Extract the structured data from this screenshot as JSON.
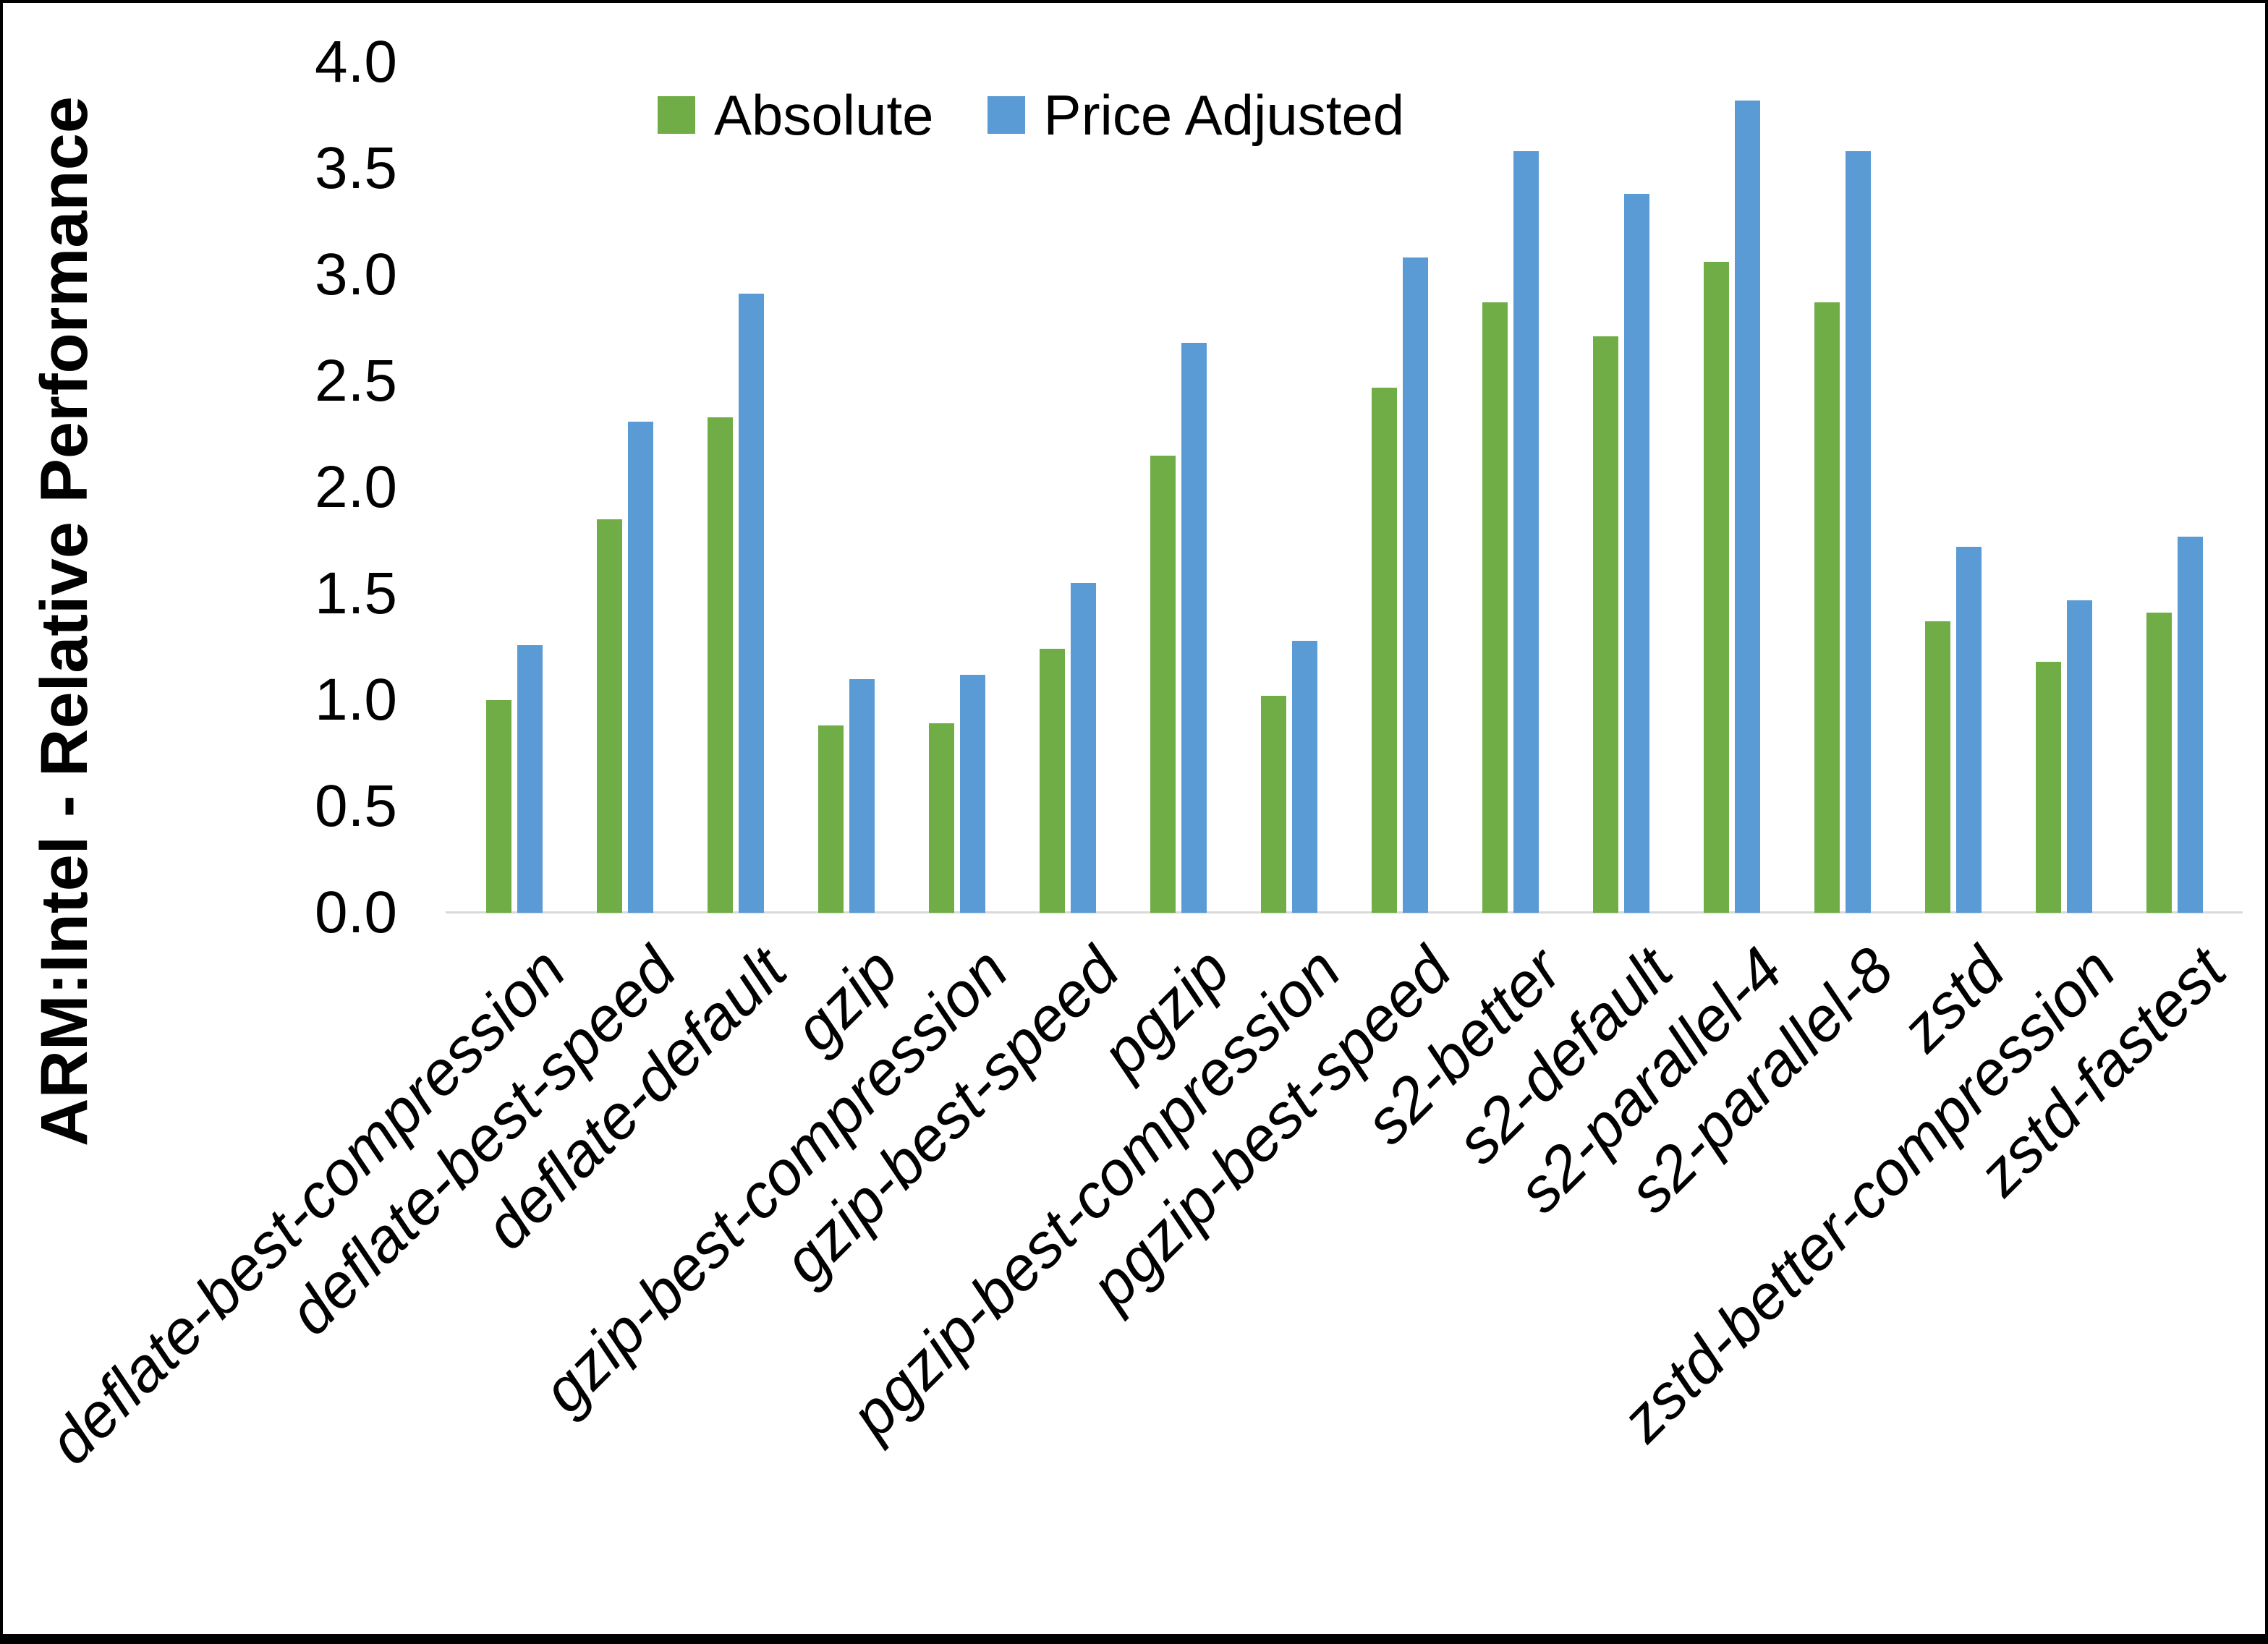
{
  "chart_data": {
    "type": "bar",
    "title": "",
    "xlabel": "",
    "ylabel": "ARM:Intel - Relative Performance",
    "ylim": [
      0.0,
      4.0
    ],
    "ytick_step": 0.5,
    "yticks": [
      "0.0",
      "0.5",
      "1.0",
      "1.5",
      "2.0",
      "2.5",
      "3.0",
      "3.5",
      "4.0"
    ],
    "grid": false,
    "legend_position": "top-center",
    "categories": [
      "deflate-best-compression",
      "deflate-best-speed",
      "deflate-default",
      "gzip",
      "gzip-best-compression",
      "gzip-best-speed",
      "pgzip",
      "pgzip-best-compression",
      "pgzip-best-speed",
      "s2-better",
      "s2-default",
      "s2-parallel-4",
      "s2-parallel-8",
      "zstd",
      "zstd-better-compression",
      "zstd-fastest"
    ],
    "series": [
      {
        "name": "Absolute",
        "color": "#70AD47",
        "values": [
          1.0,
          1.85,
          2.33,
          0.88,
          0.89,
          1.24,
          2.15,
          1.02,
          2.47,
          2.87,
          2.71,
          3.06,
          2.87,
          1.37,
          1.18,
          1.41
        ]
      },
      {
        "name": "Price Adjusted",
        "color": "#5B9BD5",
        "values": [
          1.26,
          2.31,
          2.91,
          1.1,
          1.12,
          1.55,
          2.68,
          1.28,
          3.08,
          3.58,
          3.38,
          3.82,
          3.58,
          1.72,
          1.47,
          1.77
        ]
      }
    ],
    "colors": {
      "axis_line": "#D9D9D9",
      "text": "#000000",
      "background": "#FFFFFF",
      "frame": "#000000"
    }
  }
}
